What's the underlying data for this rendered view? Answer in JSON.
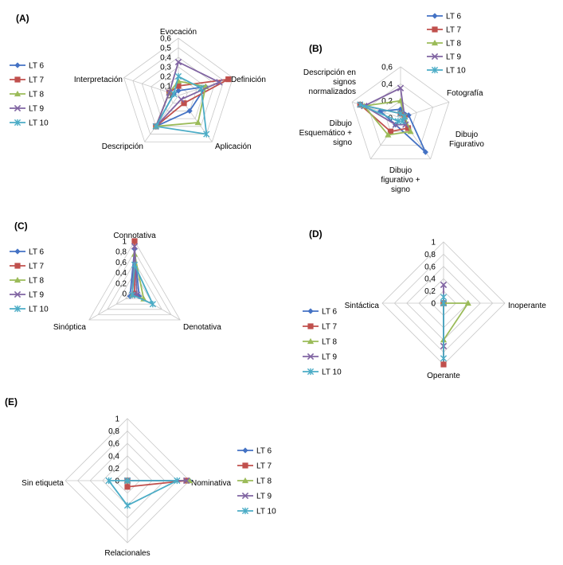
{
  "legend": [
    "LT 6",
    "LT 7",
    "LT 8",
    "LT 9",
    "LT 10"
  ],
  "colors": {
    "LT 6": "#4472C4",
    "LT 7": "#C0504D",
    "LT 8": "#9BBB59",
    "LT 9": "#8064A2",
    "LT 10": "#4BACC6"
  },
  "markers": {
    "LT 6": "diamond",
    "LT 7": "square",
    "LT 8": "triangle",
    "LT 9": "x",
    "LT 10": "asterisk"
  },
  "chart_data": [
    {
      "panel": "(A)",
      "type": "radar",
      "categories": [
        "Evocación",
        "Definición",
        "Aplicación",
        "Descripción",
        "Interpretación"
      ],
      "ticks": [
        "0",
        "0,1",
        "0,2",
        "0,3",
        "0,4",
        "0,5",
        "0,6"
      ],
      "ylim": [
        0,
        0.6
      ],
      "series": [
        {
          "name": "LT 6",
          "values": [
            0.05,
            0.3,
            0.2,
            0.4,
            0.05
          ]
        },
        {
          "name": "LT 7",
          "values": [
            0.1,
            0.55,
            0.1,
            0.4,
            0.1
          ]
        },
        {
          "name": "LT 8",
          "values": [
            0.15,
            0.3,
            0.35,
            0.4,
            0.1
          ]
        },
        {
          "name": "LT 9",
          "values": [
            0.35,
            0.45,
            0.05,
            0.4,
            0.1
          ]
        },
        {
          "name": "LT 10",
          "values": [
            0.2,
            0.25,
            0.5,
            0.4,
            0.05
          ]
        }
      ]
    },
    {
      "panel": "(B)",
      "type": "radar",
      "categories": [
        "Fotografía",
        "Dibujo Figurativo",
        "Dibujo figurativo + signo",
        "Dibujo Esquemático + signo",
        "Descripción en signos normalizados"
      ],
      "ticks": [
        "0",
        "0,2",
        "0,4",
        "0,6"
      ],
      "ylim": [
        0,
        0.6
      ],
      "series": [
        {
          "name": "LT 6",
          "values": [
            0.1,
            0.1,
            0.5,
            0.1,
            0.25
          ]
        },
        {
          "name": "LT 7",
          "values": [
            0.05,
            0.05,
            0.15,
            0.2,
            0.5
          ]
        },
        {
          "name": "LT 8",
          "values": [
            0.2,
            0.05,
            0.2,
            0.25,
            0.45
          ]
        },
        {
          "name": "LT 9",
          "values": [
            0.35,
            0.05,
            0.1,
            0.1,
            0.45
          ]
        },
        {
          "name": "LT 10",
          "values": [
            0.05,
            0.05,
            0.05,
            0.05,
            0.5
          ]
        }
      ]
    },
    {
      "panel": "(C)",
      "type": "radar",
      "categories": [
        "Connotativa",
        "Denotativa",
        "Sinóptica"
      ],
      "ticks": [
        "0",
        "0,2",
        "0,4",
        "0,6",
        "0,8",
        "1"
      ],
      "ylim": [
        0,
        1
      ],
      "series": [
        {
          "name": "LT 6",
          "values": [
            0.85,
            0.1,
            0.1
          ]
        },
        {
          "name": "LT 7",
          "values": [
            1.0,
            0.0,
            0.0
          ]
        },
        {
          "name": "LT 8",
          "values": [
            0.75,
            0.2,
            0.05
          ]
        },
        {
          "name": "LT 9",
          "values": [
            0.9,
            0.05,
            0.05
          ]
        },
        {
          "name": "LT 10",
          "values": [
            0.55,
            0.4,
            0.05
          ]
        }
      ]
    },
    {
      "panel": "(D)",
      "type": "radar",
      "categories": [
        "Inoperante",
        "Operante",
        "Sintáctica",
        ""
      ],
      "ticks": [
        "0",
        "0,2",
        "0,4",
        "0,6",
        "0,8",
        "1"
      ],
      "ylim": [
        0,
        1
      ],
      "series": [
        {
          "name": "LT 6",
          "values": [
            0.0,
            0.0,
            1.0,
            0.0
          ]
        },
        {
          "name": "LT 7",
          "values": [
            0.0,
            0.0,
            1.0,
            0.0
          ]
        },
        {
          "name": "LT 8",
          "values": [
            0.0,
            0.4,
            0.6,
            0.0
          ]
        },
        {
          "name": "LT 9",
          "values": [
            0.3,
            0.0,
            0.7,
            0.0
          ]
        },
        {
          "name": "LT 10",
          "values": [
            0.1,
            0.0,
            0.9,
            0.0
          ]
        }
      ]
    },
    {
      "panel": "(E)",
      "type": "radar",
      "categories": [
        "",
        "Nominativa",
        "Relacionales",
        "Sin etiqueta"
      ],
      "ticks": [
        "0",
        "0,2",
        "0,4",
        "0,6",
        "0,8",
        "1"
      ],
      "ylim": [
        0,
        1
      ],
      "series": [
        {
          "name": "LT 6",
          "values": [
            0.0,
            1.0,
            0.0,
            0.0
          ]
        },
        {
          "name": "LT 7",
          "values": [
            0.0,
            0.95,
            0.1,
            0.0
          ]
        },
        {
          "name": "LT 8",
          "values": [
            0.0,
            1.0,
            0.0,
            0.0
          ]
        },
        {
          "name": "LT 9",
          "values": [
            0.0,
            0.95,
            0.0,
            0.0
          ]
        },
        {
          "name": "LT 10",
          "values": [
            0.0,
            0.8,
            0.4,
            0.3
          ]
        }
      ]
    }
  ]
}
